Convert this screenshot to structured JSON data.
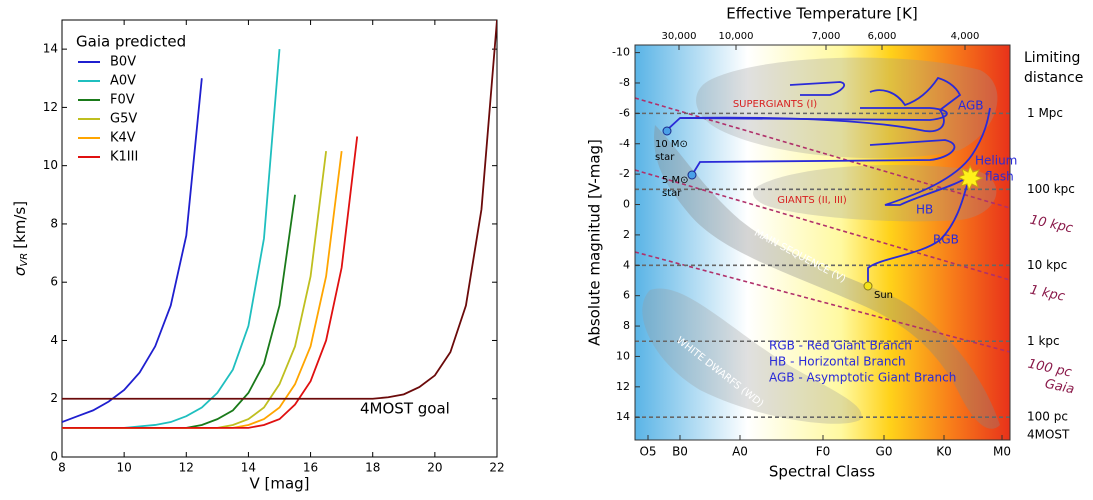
{
  "chart_data": [
    {
      "type": "line",
      "xlabel": "V [mag]",
      "ylabel_symbol": "σ",
      "ylabel_sub": "VR",
      "ylabel_unit": "[km/s]",
      "legend_title": "Gaia predicted",
      "legend": "upper left",
      "annotation": "4MOST goal",
      "xlim": [
        8,
        22
      ],
      "ylim": [
        0,
        15
      ],
      "xticks": [
        8,
        10,
        12,
        14,
        16,
        18,
        20,
        22
      ],
      "yticks": [
        0,
        2,
        4,
        6,
        8,
        10,
        12,
        14
      ],
      "x": [
        8,
        8.5,
        9,
        9.5,
        10,
        10.5,
        11,
        11.5,
        12,
        12.5,
        13,
        13.5,
        14,
        14.5,
        15,
        15.5,
        16,
        16.5,
        17,
        17.5,
        18,
        18.5,
        19,
        19.5,
        20,
        20.5,
        21,
        21.5,
        22
      ],
      "series": [
        {
          "name": "B0V",
          "color": "#1f1fcf",
          "values": [
            1.2,
            1.4,
            1.6,
            1.9,
            2.3,
            2.9,
            3.8,
            5.2,
            7.6,
            13,
            null,
            null,
            null,
            null,
            null,
            null,
            null,
            null,
            null,
            null,
            null,
            null,
            null,
            null,
            null,
            null,
            null,
            null,
            null
          ]
        },
        {
          "name": "A0V",
          "color": "#1fbfbf",
          "values": [
            1,
            1,
            1,
            1,
            1,
            1.05,
            1.1,
            1.2,
            1.4,
            1.7,
            2.2,
            3.0,
            4.5,
            7.5,
            14,
            null,
            null,
            null,
            null,
            null,
            null,
            null,
            null,
            null,
            null,
            null,
            null,
            null,
            null
          ]
        },
        {
          "name": "F0V",
          "color": "#1a7a1a",
          "values": [
            1,
            1,
            1,
            1,
            1,
            1,
            1,
            1,
            1,
            1.1,
            1.3,
            1.6,
            2.2,
            3.2,
            5.2,
            9,
            null,
            null,
            null,
            null,
            null,
            null,
            null,
            null,
            null,
            null,
            null,
            null,
            null
          ]
        },
        {
          "name": "G5V",
          "color": "#bfbf1f",
          "values": [
            1,
            1,
            1,
            1,
            1,
            1,
            1,
            1,
            1,
            1,
            1,
            1.1,
            1.3,
            1.7,
            2.5,
            3.8,
            6.2,
            10.5,
            null,
            null,
            null,
            null,
            null,
            null,
            null,
            null,
            null,
            null,
            null
          ]
        },
        {
          "name": "K4V",
          "color": "#ffa500",
          "values": [
            1,
            1,
            1,
            1,
            1,
            1,
            1,
            1,
            1,
            1,
            1,
            1,
            1.1,
            1.3,
            1.7,
            2.5,
            3.8,
            6.2,
            10.5,
            null,
            null,
            null,
            null,
            null,
            null,
            null,
            null,
            null,
            null
          ]
        },
        {
          "name": "K1III",
          "color": "#e01010",
          "values": [
            1,
            1,
            1,
            1,
            1,
            1,
            1,
            1,
            1,
            1,
            1,
            1,
            1,
            1.1,
            1.3,
            1.8,
            2.6,
            4.0,
            6.5,
            11,
            null,
            null,
            null,
            null,
            null,
            null,
            null,
            null,
            null
          ]
        },
        {
          "color": "#6b0a0a",
          "values": [
            2,
            2,
            2,
            2,
            2,
            2,
            2,
            2,
            2,
            2,
            2,
            2,
            2,
            2,
            2,
            2,
            2,
            2,
            2,
            2,
            2,
            2.05,
            2.15,
            2.4,
            2.8,
            3.6,
            5.2,
            8.5,
            15
          ]
        }
      ]
    },
    {
      "type": "hr-diagram",
      "title": "Effective Temperature [K]",
      "top_ticks": [
        "30,000",
        "10,000",
        "7,000",
        "6,000",
        "4,000"
      ],
      "xlabel": "Spectral Class",
      "categories": [
        "O5",
        "B0",
        "A0",
        "F0",
        "G0",
        "K0",
        "M0"
      ],
      "ylabel": "Absolute magnitud [V-mag]",
      "ylim": [
        -10.5,
        15.5
      ],
      "yticks": [
        -10,
        -8,
        -6,
        -4,
        -2,
        0,
        2,
        4,
        6,
        8,
        10,
        12,
        14
      ],
      "right_title": [
        "Limiting",
        "distance"
      ],
      "distance_lines": [
        {
          "value": -6,
          "label": "1 Mpc"
        },
        {
          "value": -1,
          "label": "100 kpc"
        },
        {
          "value": 4,
          "label": "10 kpc"
        },
        {
          "value": 9,
          "label": "1 kpc"
        },
        {
          "value": 14,
          "label": "100 pc"
        }
      ],
      "distance_sublabel": "4MOST",
      "gaia_labels": [
        "10 kpc",
        "1 kpc",
        "100 pc",
        "Gaia"
      ],
      "regions": [
        "SUPERGIANTS (I)",
        "GIANTS (II, III)",
        "MAIN SEQUENCE (V)",
        "WHITE DWARFS (WD)"
      ],
      "stars": [
        "10 M⊙",
        "star",
        "5 M⊙",
        "star",
        "Sun"
      ],
      "track_labels": [
        "AGB",
        "Helium",
        "flash",
        "HB",
        "RGB"
      ],
      "key": [
        "RGB  - Red Giant Branch",
        "HB   - Horizontal Branch",
        "AGB - Asymptotic Giant Branch"
      ]
    }
  ]
}
